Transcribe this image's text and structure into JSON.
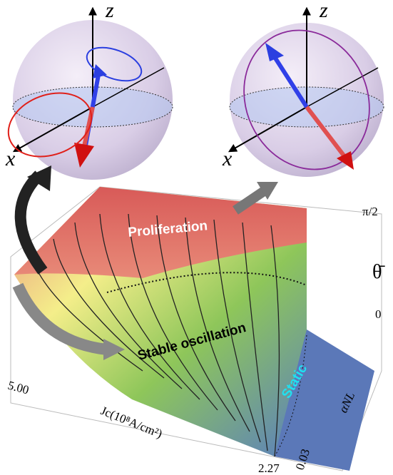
{
  "spheres": [
    {
      "axis_z": "z",
      "axis_x": "x"
    },
    {
      "axis_z": "z",
      "axis_x": "x"
    }
  ],
  "surface": {
    "regions": [
      "Proliferation",
      "Stable oscillation",
      "Static"
    ],
    "z_axis": {
      "label": "θ̄",
      "ticks": [
        "π/2",
        "0"
      ]
    },
    "x_axis": {
      "label": "Jc(10⁸A/cm²)",
      "ticks": [
        "5.00",
        "2.27"
      ]
    },
    "y_axis": {
      "label": "αNL",
      "ticks": [
        "0.03"
      ]
    }
  }
}
